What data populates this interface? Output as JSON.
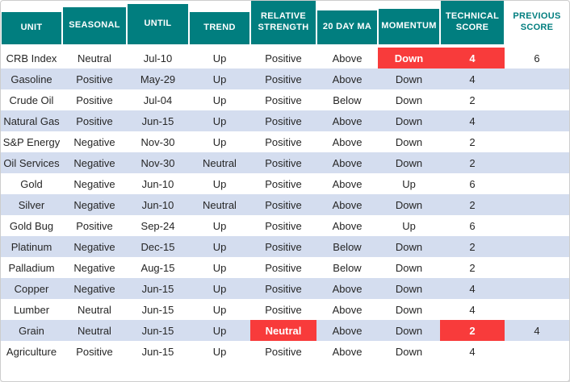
{
  "colors": {
    "header_bg": "#017e7f",
    "header_text": "#ffffff",
    "header_alt_text": "#017e7f",
    "row_bg": "#ffffff",
    "row_alt_bg": "#d4ddef",
    "highlight_bg": "#f83b3b",
    "highlight_text": "#ffffff",
    "body_text": "#262626"
  },
  "chart_data": {
    "type": "table",
    "columns": [
      {
        "key": "unit",
        "label": "UNIT"
      },
      {
        "key": "seasonal",
        "label": "SEASONAL"
      },
      {
        "key": "until",
        "label": "UNTIL"
      },
      {
        "key": "trend",
        "label": "TREND"
      },
      {
        "key": "relative_strength",
        "label": "RELATIVE STRENGTH"
      },
      {
        "key": "ma20",
        "label": "20 DAY MA"
      },
      {
        "key": "momentum",
        "label": "MOMENTUM"
      },
      {
        "key": "technical_score",
        "label": "TECHNICAL SCORE"
      },
      {
        "key": "previous_score",
        "label": "PREVIOUS SCORE"
      }
    ],
    "rows": [
      {
        "unit": "CRB Index",
        "seasonal": "Neutral",
        "until": "Jul-10",
        "trend": "Up",
        "relative_strength": "Positive",
        "ma20": "Above",
        "momentum": "Down",
        "technical_score": "4",
        "previous_score": "6",
        "highlights": [
          "momentum",
          "technical_score"
        ]
      },
      {
        "unit": "Gasoline",
        "seasonal": "Positive",
        "until": "May-29",
        "trend": "Up",
        "relative_strength": "Positive",
        "ma20": "Above",
        "momentum": "Down",
        "technical_score": "4",
        "previous_score": "",
        "highlights": []
      },
      {
        "unit": "Crude Oil",
        "seasonal": "Positive",
        "until": "Jul-04",
        "trend": "Up",
        "relative_strength": "Positive",
        "ma20": "Below",
        "momentum": "Down",
        "technical_score": "2",
        "previous_score": "",
        "highlights": []
      },
      {
        "unit": "Natural Gas",
        "seasonal": "Positive",
        "until": "Jun-15",
        "trend": "Up",
        "relative_strength": "Positive",
        "ma20": "Above",
        "momentum": "Down",
        "technical_score": "4",
        "previous_score": "",
        "highlights": []
      },
      {
        "unit": "S&P Energy",
        "seasonal": "Negative",
        "until": "Nov-30",
        "trend": "Up",
        "relative_strength": "Positive",
        "ma20": "Above",
        "momentum": "Down",
        "technical_score": "2",
        "previous_score": "",
        "highlights": []
      },
      {
        "unit": "Oil Services",
        "seasonal": "Negative",
        "until": "Nov-30",
        "trend": "Neutral",
        "relative_strength": "Positive",
        "ma20": "Above",
        "momentum": "Down",
        "technical_score": "2",
        "previous_score": "",
        "highlights": []
      },
      {
        "unit": "Gold",
        "seasonal": "Negative",
        "until": "Jun-10",
        "trend": "Up",
        "relative_strength": "Positive",
        "ma20": "Above",
        "momentum": "Up",
        "technical_score": "6",
        "previous_score": "",
        "highlights": []
      },
      {
        "unit": "Silver",
        "seasonal": "Negative",
        "until": "Jun-10",
        "trend": "Neutral",
        "relative_strength": "Positive",
        "ma20": "Above",
        "momentum": "Down",
        "technical_score": "2",
        "previous_score": "",
        "highlights": []
      },
      {
        "unit": "Gold Bug",
        "seasonal": "Positive",
        "until": "Sep-24",
        "trend": "Up",
        "relative_strength": "Positive",
        "ma20": "Above",
        "momentum": "Up",
        "technical_score": "6",
        "previous_score": "",
        "highlights": []
      },
      {
        "unit": "Platinum",
        "seasonal": "Negative",
        "until": "Dec-15",
        "trend": "Up",
        "relative_strength": "Positive",
        "ma20": "Below",
        "momentum": "Down",
        "technical_score": "2",
        "previous_score": "",
        "highlights": []
      },
      {
        "unit": "Palladium",
        "seasonal": "Negative",
        "until": "Aug-15",
        "trend": "Up",
        "relative_strength": "Positive",
        "ma20": "Below",
        "momentum": "Down",
        "technical_score": "2",
        "previous_score": "",
        "highlights": []
      },
      {
        "unit": "Copper",
        "seasonal": "Negative",
        "until": "Jun-15",
        "trend": "Up",
        "relative_strength": "Positive",
        "ma20": "Above",
        "momentum": "Down",
        "technical_score": "4",
        "previous_score": "",
        "highlights": []
      },
      {
        "unit": "Lumber",
        "seasonal": "Neutral",
        "until": "Jun-15",
        "trend": "Up",
        "relative_strength": "Positive",
        "ma20": "Above",
        "momentum": "Down",
        "technical_score": "4",
        "previous_score": "",
        "highlights": []
      },
      {
        "unit": "Grain",
        "seasonal": "Neutral",
        "until": "Jun-15",
        "trend": "Up",
        "relative_strength": "Neutral",
        "ma20": "Above",
        "momentum": "Down",
        "technical_score": "2",
        "previous_score": "4",
        "highlights": [
          "relative_strength",
          "technical_score"
        ]
      },
      {
        "unit": "Agriculture",
        "seasonal": "Positive",
        "until": "Jun-15",
        "trend": "Up",
        "relative_strength": "Positive",
        "ma20": "Above",
        "momentum": "Down",
        "technical_score": "4",
        "previous_score": "",
        "highlights": []
      }
    ]
  }
}
